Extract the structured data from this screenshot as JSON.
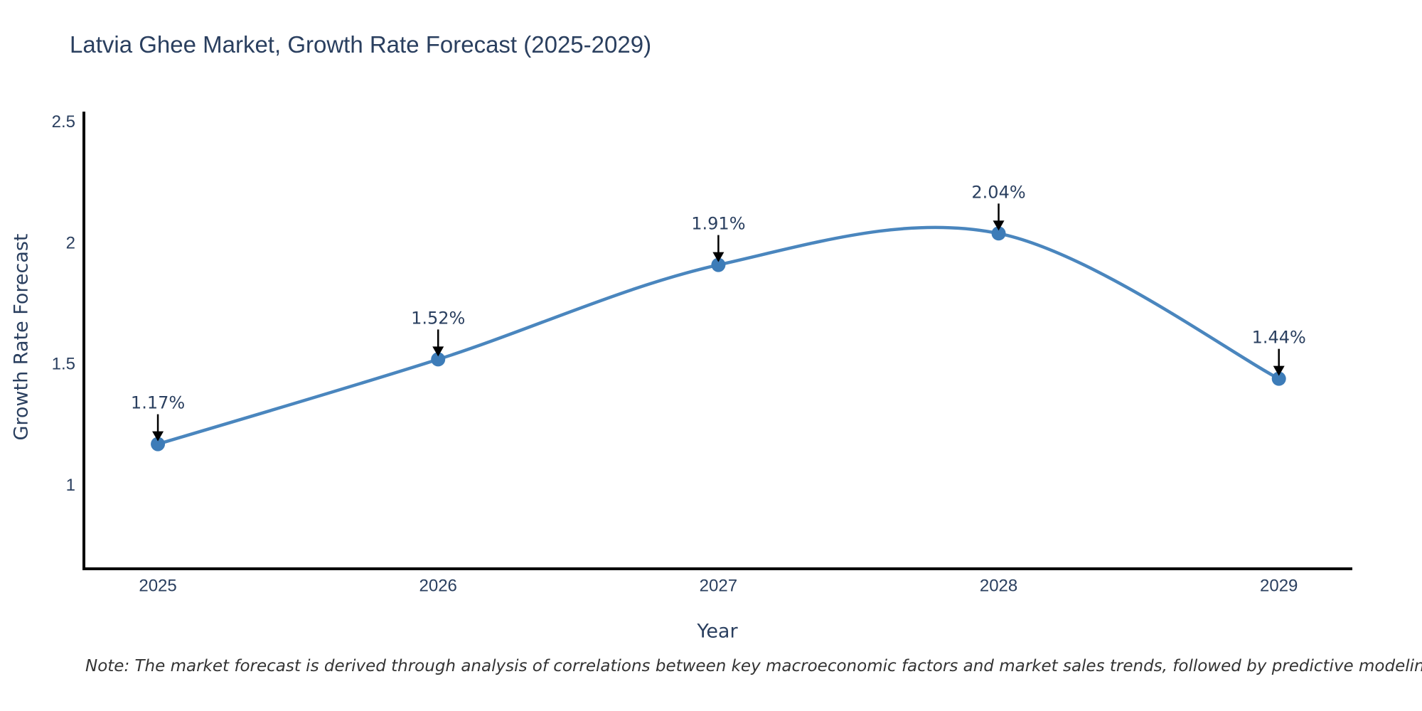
{
  "title": "Latvia Ghee Market, Growth Rate Forecast (2025-2029)",
  "note": "Note: The market forecast is derived through analysis of correlations between key macroeconomic factors and market sales trends, followed by predictive modeling to project future sales",
  "chart_data": {
    "type": "line",
    "title": "Latvia Ghee Market, Growth Rate Forecast (2025-2029)",
    "xlabel": "Year",
    "ylabel": "Growth Rate Forecast",
    "x": [
      2025,
      2026,
      2027,
      2028,
      2029
    ],
    "values": [
      1.17,
      1.52,
      1.91,
      2.04,
      1.44
    ],
    "point_labels": [
      "1.17%",
      "1.52%",
      "1.91%",
      "2.04%",
      "1.44%"
    ],
    "xtick_labels": [
      "2025",
      "2026",
      "2027",
      "2028",
      "2029"
    ],
    "yticks": [
      1,
      1.5,
      2,
      2.5
    ],
    "ytick_labels": [
      "1",
      "1.5",
      "2",
      "2.5"
    ],
    "xlim": [
      2024.736,
      2029.257
    ],
    "ylim": [
      0.655,
      2.543
    ],
    "line_shape": "spline",
    "grid": false,
    "legend": "none",
    "colors": {
      "line": "#4a86be",
      "marker": "#3d7cb8",
      "axis": "#000000",
      "text": "#2a3f5f",
      "annotation": "#2a3f5f",
      "arrow": "#000000",
      "note": "#333333",
      "background": "#ffffff"
    }
  }
}
